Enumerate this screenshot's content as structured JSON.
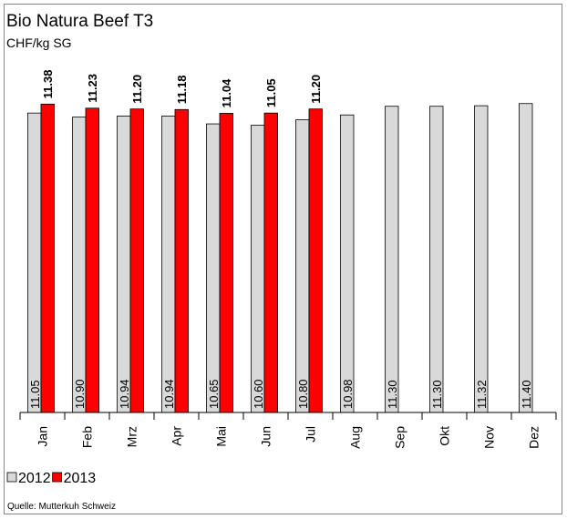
{
  "chart_data": {
    "type": "bar",
    "title": "Bio Natura Beef T3",
    "subtitle": "CHF/kg SG",
    "categories": [
      "Jan",
      "Feb",
      "Mrz",
      "Apr",
      "Mai",
      "Jun",
      "Jul",
      "Aug",
      "Sep",
      "Okt",
      "Nov",
      "Dez"
    ],
    "series": [
      {
        "name": "2012",
        "color": "#d9d9d9",
        "values": [
          11.05,
          10.9,
          10.94,
          10.94,
          10.65,
          10.6,
          10.8,
          10.98,
          11.3,
          11.3,
          11.32,
          11.4
        ],
        "value_labels": [
          "11.05",
          "10.90",
          "10.94",
          "10.94",
          "10.65",
          "10.60",
          "10.80",
          "10.98",
          "11.30",
          "11.30",
          "11.32",
          "11.40"
        ]
      },
      {
        "name": "2013",
        "color": "#ff0000",
        "values": [
          11.38,
          11.23,
          11.2,
          11.18,
          11.04,
          11.05,
          11.2,
          null,
          null,
          null,
          null,
          null
        ],
        "value_labels": [
          "11.38",
          "11.23",
          "11.20",
          "11.18",
          "11.04",
          "11.05",
          "11.20",
          null,
          null,
          null,
          null,
          null
        ]
      }
    ],
    "ylim": [
      0,
      12.5
    ],
    "legend": "bottom-left",
    "source": "Quelle: Mutterkuh Schweiz"
  }
}
